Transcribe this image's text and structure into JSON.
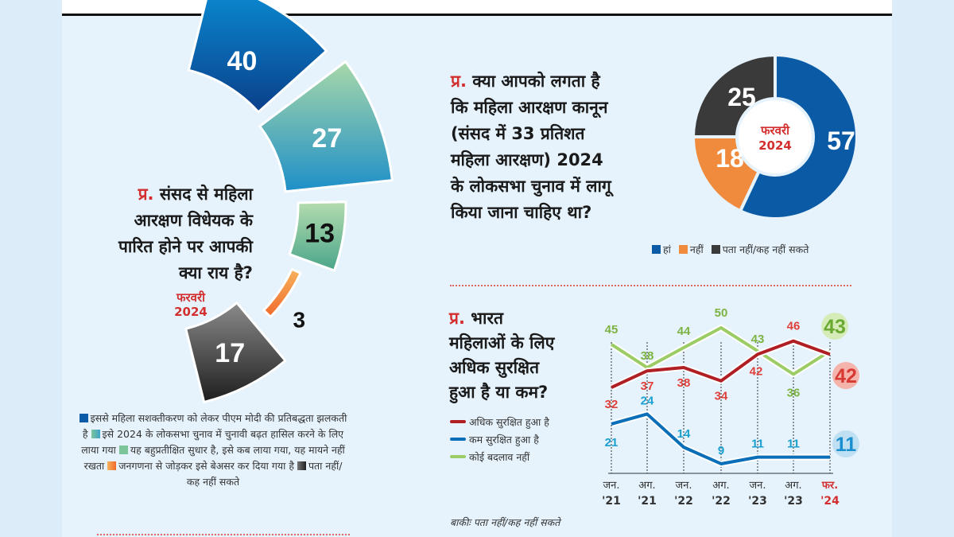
{
  "colors": {
    "accent_red": "#d32f2f",
    "panel_bg": "#e6f3fc"
  },
  "chart_data": [
    {
      "type": "pie",
      "variant": "radial-segments",
      "question_prefix": "प्र.",
      "question": "संसद से महिला आरक्षण विधेयक के पारित होने पर आपकी क्या राय है?",
      "date": [
        "फरवरी",
        "2024"
      ],
      "categories": [
        "इससे महिला सशक्तीकरण को लेकर पीएम मोदी की प्रतिबद्धता झलकती है",
        "इसे 2024 के लोकसभा चुनाव में चुनावी बढ़त हासिल करने के लिए लाया गया",
        "यह बहुप्रतीक्षित सुधार है, इसे कब लाया गया, यह मायने नहीं रखता",
        "जनगणना से जोड़कर इसे बेअसर कर दिया गया है",
        "पता नहीं/कह नहीं सकते"
      ],
      "values": [
        40,
        27,
        13,
        3,
        17
      ],
      "value_labels": [
        "40",
        "27",
        "13",
        "3",
        "17"
      ],
      "colors": [
        "#0a5aa8",
        "#3fa3c8",
        "#7cc49a",
        "#f08a3c",
        "#3a3a3a"
      ]
    },
    {
      "type": "pie",
      "variant": "donut",
      "question_prefix": "प्र.",
      "question_lines": [
        "क्या आपको लगता है",
        "कि महिला आरक्षण कानून",
        "(संसद में 33 प्रतिशत",
        "महिला आरक्षण) 2024",
        "के लोकसभा चुनाव में लागू",
        "किया जाना चाहिए था?"
      ],
      "center_label": [
        "फरवरी",
        "2024"
      ],
      "categories": [
        "हां",
        "नहीं",
        "पता नहीं/कह नहीं सकते"
      ],
      "values": [
        57,
        18,
        25
      ],
      "value_labels": [
        "57",
        "18",
        "25"
      ],
      "colors": [
        "#0b5aa6",
        "#f08a3c",
        "#3a3a3a"
      ],
      "legend_position": "bottom"
    },
    {
      "type": "line",
      "question_prefix": "प्र.",
      "question_lines": [
        "भारत",
        "महिलाओं के लिए",
        "अधिक सुरक्षित",
        "हुआ है या कम?"
      ],
      "categories": [
        [
          "जन.",
          "'21"
        ],
        [
          "अग.",
          "'21"
        ],
        [
          "जन.",
          "'22"
        ],
        [
          "अग.",
          "'22"
        ],
        [
          "जन.",
          "'23"
        ],
        [
          "अग.",
          "'23"
        ],
        [
          "फर.",
          "'24"
        ]
      ],
      "series": [
        {
          "name": "अधिक सुरक्षित हुआ है",
          "values": [
            32,
            37,
            38,
            34,
            42,
            46,
            42
          ],
          "color": "#b01f24",
          "label_color": "#e0403a"
        },
        {
          "name": "कम सुरक्षित हुआ है",
          "values": [
            21,
            24,
            14,
            9,
            11,
            11,
            11
          ],
          "color": "#0a6fb8",
          "label_color": "#1aa0d0"
        },
        {
          "name": "कोई बदलाव नहीं",
          "values": [
            45,
            38,
            44,
            50,
            43,
            36,
            43
          ],
          "color": "#9ccc65",
          "label_color": "#7cb342"
        }
      ],
      "ylim": [
        0,
        55
      ],
      "grid": "dashed vertical at each category",
      "legend_position": "left",
      "note": "बाकीः पता नहीं/कह नहीं सकते"
    }
  ]
}
